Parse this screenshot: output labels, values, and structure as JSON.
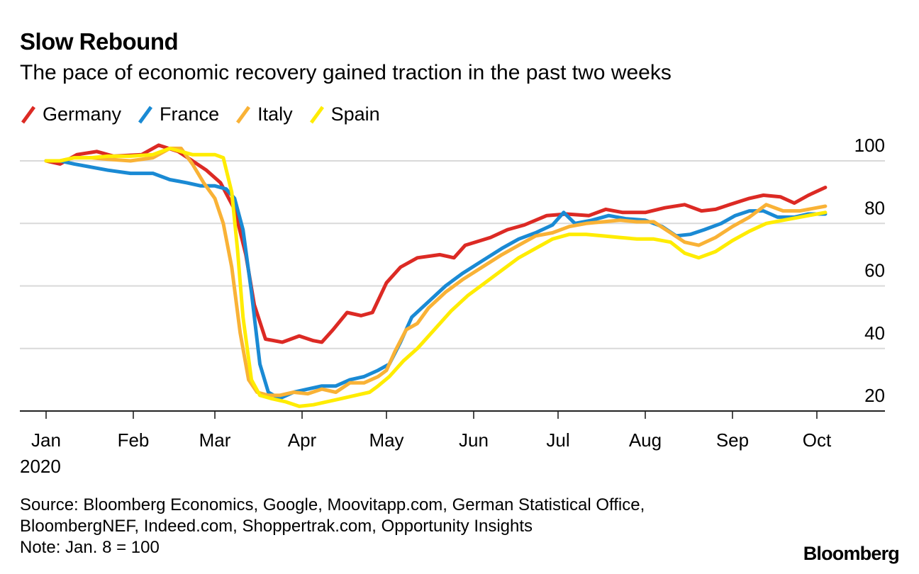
{
  "header": {
    "title": "Slow Rebound",
    "subtitle": "The pace of economic recovery gained traction in the past two weeks"
  },
  "footer": {
    "source_line1": "Source: Bloomberg Economics, Google, Moovitapp.com, German Statistical Office,",
    "source_line2": "BloombergNEF, Indeed.com, Shoppertrak.com, Opportunity Insights",
    "note": "Note: Jan. 8 = 100",
    "brand": "Bloomberg"
  },
  "chart_data": {
    "type": "line",
    "title": "Slow Rebound",
    "subtitle": "The pace of economic recovery gained traction in the past two weeks",
    "xlabel": "",
    "ylabel": "",
    "x_unit": "days since Jan 1, 2020",
    "x_ticks": [
      {
        "label": "Jan",
        "day": 0
      },
      {
        "label": "Feb",
        "day": 31
      },
      {
        "label": "Mar",
        "day": 60
      },
      {
        "label": "Apr",
        "day": 91
      },
      {
        "label": "May",
        "day": 121
      },
      {
        "label": "Jun",
        "day": 152
      },
      {
        "label": "Jul",
        "day": 182
      },
      {
        "label": "Aug",
        "day": 213
      },
      {
        "label": "Sep",
        "day": 244
      },
      {
        "label": "Oct",
        "day": 274
      }
    ],
    "x_year_label": "2020",
    "xlim": [
      -9,
      299
    ],
    "y_ticks": [
      20,
      40,
      60,
      80,
      100
    ],
    "ylim": [
      20,
      100
    ],
    "y_axis_side": "right",
    "grid": true,
    "legend_position": "top-left",
    "series": [
      {
        "name": "Germany",
        "color": "#dc2a24",
        "x": [
          0,
          5,
          11,
          18,
          24,
          34,
          40,
          47,
          52,
          57,
          62,
          67,
          71,
          74,
          78,
          84,
          90,
          95,
          98,
          102,
          107,
          112,
          116,
          121,
          126,
          132,
          140,
          145,
          149,
          158,
          164,
          170,
          178,
          185,
          193,
          199,
          205,
          213,
          220,
          227,
          233,
          238,
          243,
          250,
          255,
          261,
          266,
          271,
          277
        ],
        "values": [
          100,
          99,
          102,
          103,
          101.5,
          102,
          105,
          103,
          100,
          97,
          93,
          84.5,
          70,
          54,
          43,
          42,
          44,
          42.5,
          42,
          46,
          51.5,
          50.5,
          51.5,
          61,
          66,
          69,
          70,
          69,
          73,
          75.5,
          78,
          79.5,
          82.5,
          83,
          82.5,
          84.5,
          83.5,
          83.5,
          85,
          86,
          84,
          84.5,
          86,
          88,
          89,
          88.5,
          86.5,
          89,
          91.5
        ]
      },
      {
        "name": "France",
        "color": "#1a8ad4",
        "x": [
          0,
          5,
          10,
          16,
          22,
          30,
          38,
          44,
          50,
          55,
          60,
          64,
          67,
          70,
          73,
          76,
          79,
          83,
          88,
          93,
          98,
          103,
          108,
          113,
          118,
          122,
          126,
          130,
          136,
          142,
          148,
          155,
          162,
          168,
          174,
          180,
          184,
          188,
          194,
          200,
          206,
          213,
          219,
          224,
          229,
          234,
          240,
          245,
          250,
          255,
          260,
          266,
          271,
          277
        ],
        "values": [
          100,
          100,
          99,
          98,
          97,
          96,
          96,
          94,
          93,
          92,
          92,
          91,
          88,
          78,
          58,
          35,
          26,
          24,
          26,
          27,
          28,
          28,
          30,
          31,
          33,
          35,
          42,
          50,
          55,
          60,
          64,
          68,
          72,
          75,
          77,
          79.5,
          83.5,
          80,
          81,
          82.5,
          81.5,
          81,
          79,
          76,
          76.5,
          78,
          80,
          82.5,
          84,
          84,
          82,
          82,
          83,
          83
        ]
      },
      {
        "name": "Italy",
        "color": "#f9b236",
        "x": [
          0,
          5,
          10,
          16,
          22,
          30,
          38,
          44,
          48,
          52,
          56,
          60,
          63,
          66,
          69,
          72,
          75,
          79,
          83,
          88,
          93,
          98,
          103,
          108,
          113,
          118,
          121,
          124,
          128,
          132,
          136,
          142,
          148,
          155,
          162,
          168,
          174,
          180,
          186,
          192,
          198,
          204,
          210,
          216,
          222,
          227,
          232,
          238,
          244,
          250,
          256,
          262,
          268,
          274,
          277
        ],
        "values": [
          100,
          100,
          101,
          101,
          100.5,
          100,
          101,
          104,
          104,
          99,
          93,
          88,
          80,
          66,
          45,
          30,
          26,
          25,
          25,
          26,
          25.5,
          27,
          26,
          29,
          29,
          31,
          33,
          39,
          46,
          48,
          53,
          58,
          62,
          66,
          70,
          73,
          76,
          77,
          79,
          80,
          80.5,
          81,
          80.5,
          80.5,
          77,
          74,
          73,
          75.5,
          79,
          82,
          86,
          84,
          84,
          85,
          85.5
        ]
      },
      {
        "name": "Spain",
        "color": "#ffec00",
        "x": [
          0,
          5,
          10,
          16,
          22,
          30,
          38,
          44,
          48,
          52,
          56,
          60,
          63,
          66,
          68,
          70,
          73,
          76,
          80,
          85,
          90,
          95,
          100,
          105,
          110,
          115,
          118,
          122,
          127,
          132,
          138,
          144,
          150,
          156,
          162,
          168,
          174,
          180,
          186,
          192,
          198,
          204,
          210,
          216,
          222,
          227,
          232,
          238,
          244,
          250,
          256,
          262,
          268,
          274,
          277
        ],
        "values": [
          100,
          100,
          101,
          101,
          101.5,
          101.5,
          102,
          104,
          103,
          102,
          102,
          102,
          101,
          90,
          72,
          50,
          30,
          25,
          24,
          23,
          21.5,
          22,
          23,
          24,
          25,
          26,
          28,
          31,
          36,
          40,
          46,
          52,
          57,
          61,
          65,
          69,
          72,
          75,
          76.5,
          76.5,
          76,
          75.5,
          75,
          75,
          74,
          70.5,
          69,
          71,
          74.5,
          77.5,
          80,
          81,
          82,
          83,
          83.5
        ]
      }
    ]
  }
}
